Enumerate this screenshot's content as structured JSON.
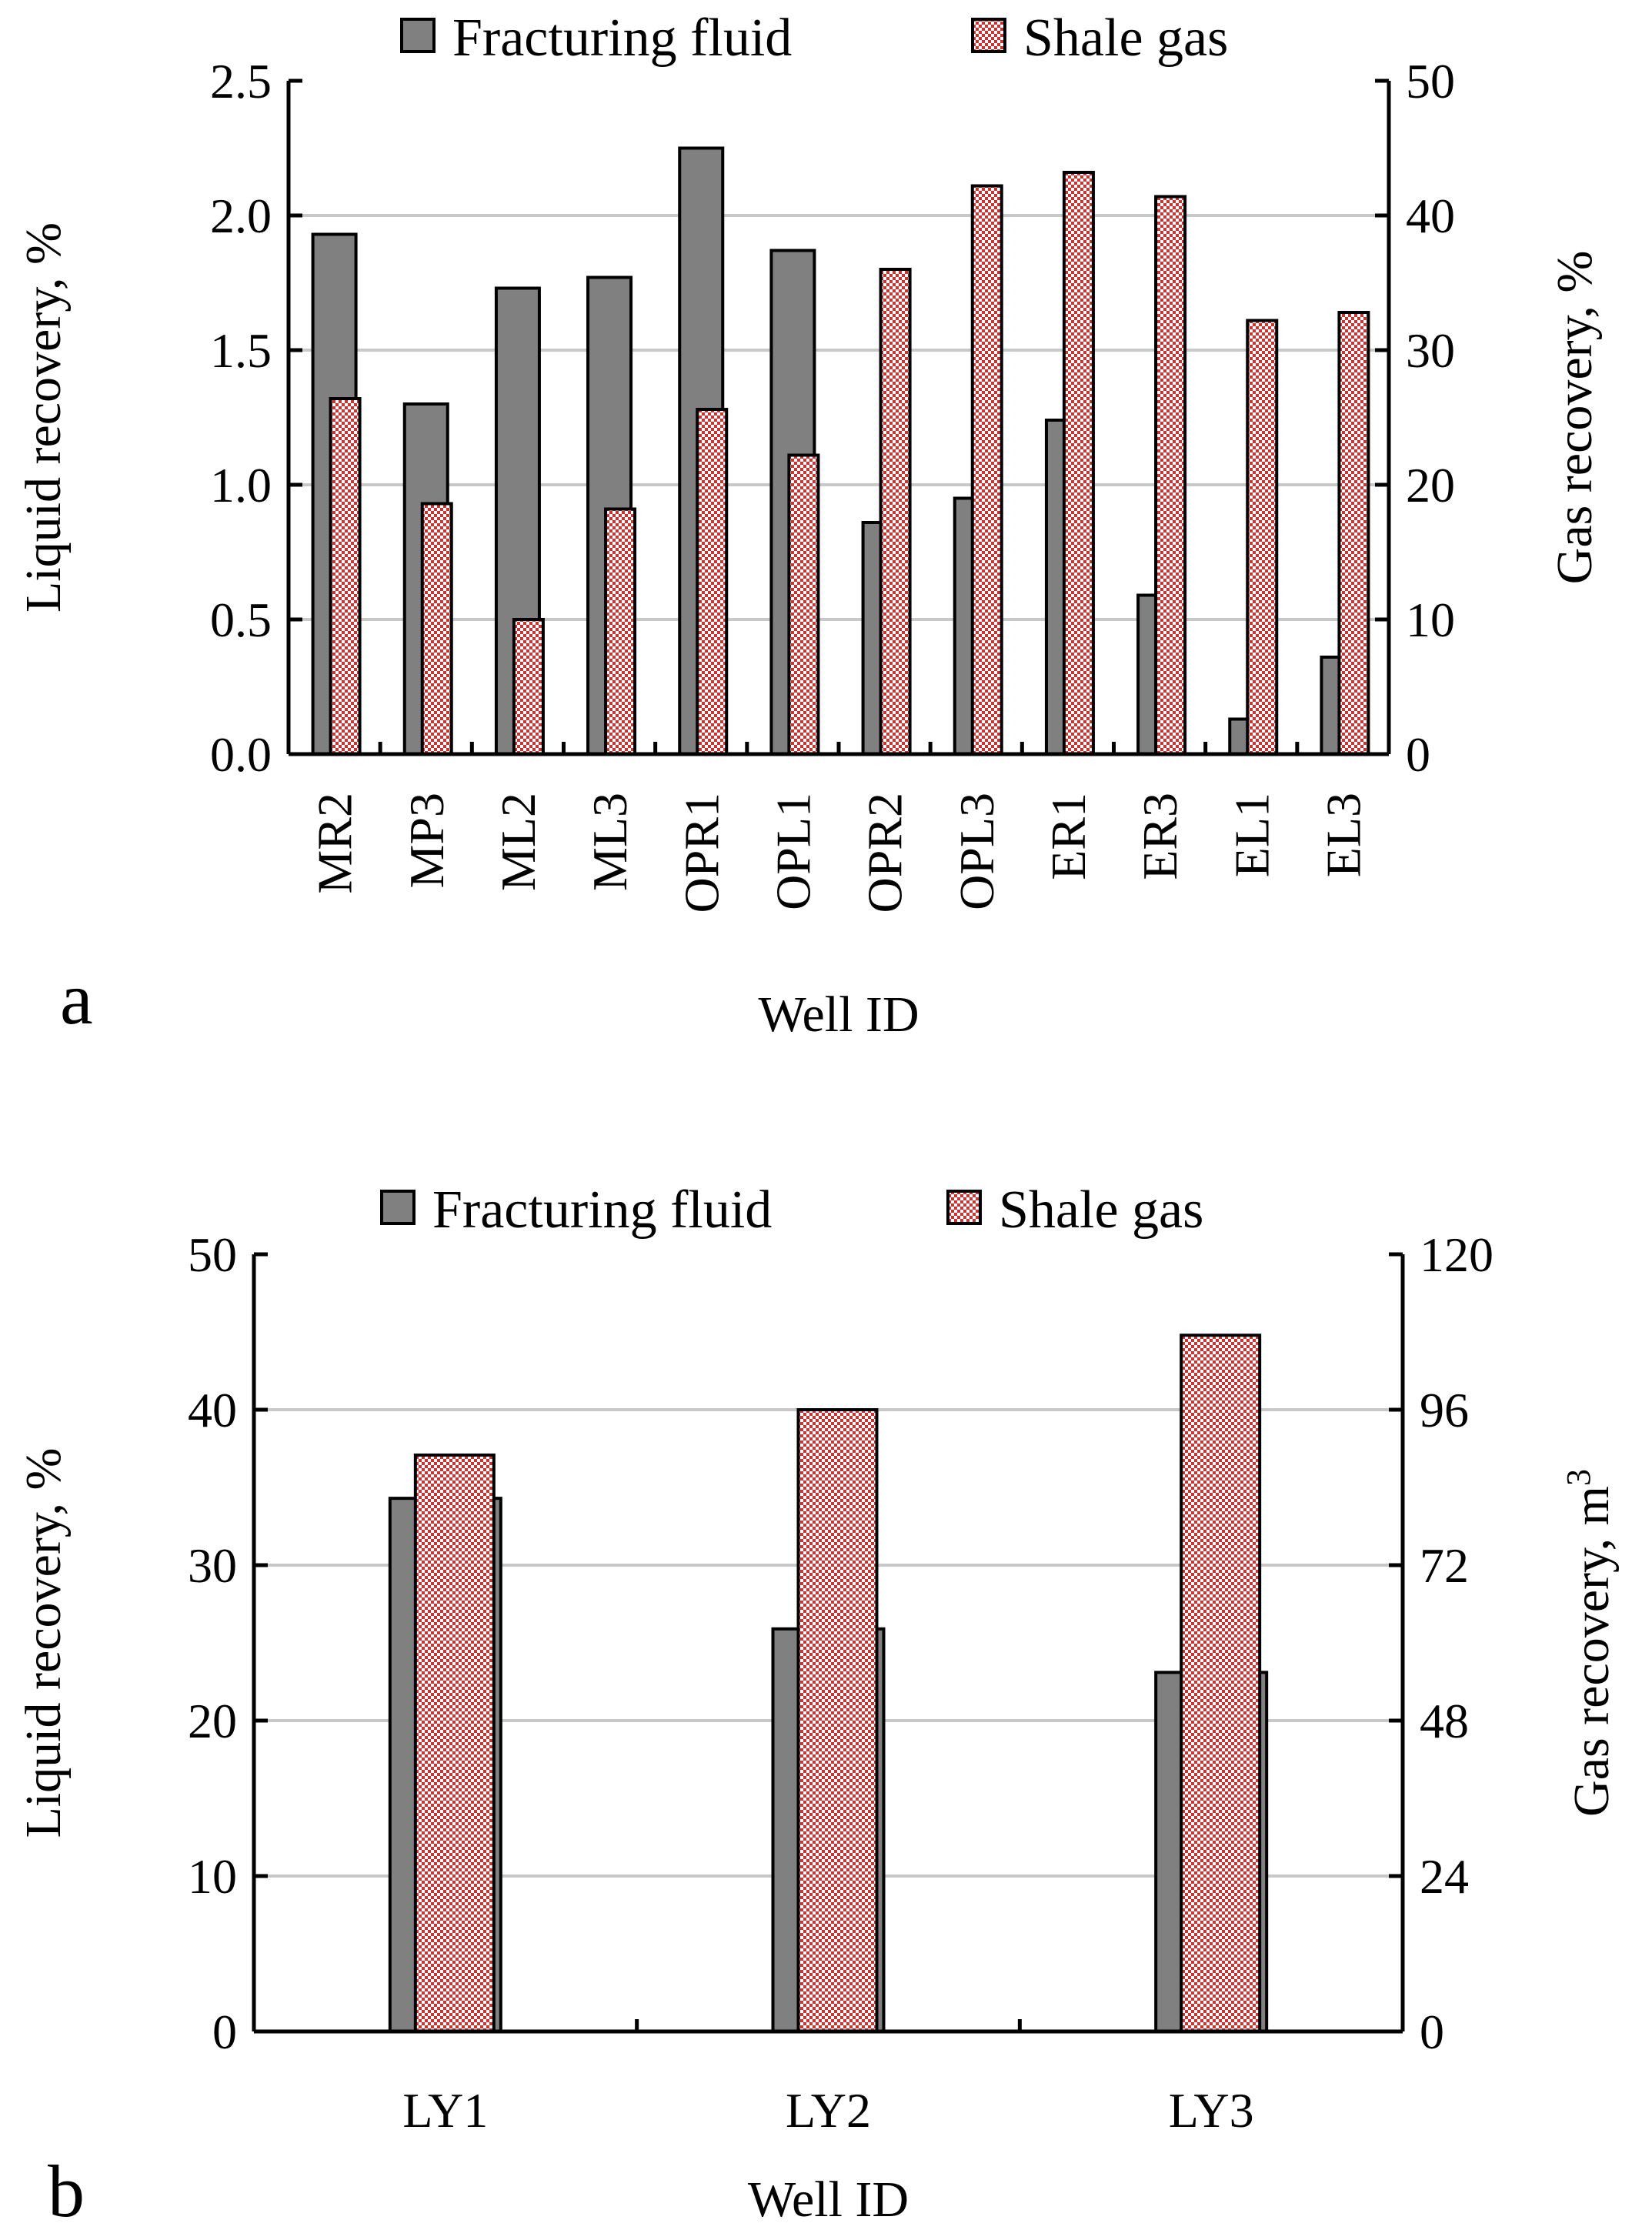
{
  "colors": {
    "fluid_bar": "#808080",
    "gas_bar": "#cc3333",
    "gas_bar_light": "#ffffff",
    "grid": "#c8c8c8",
    "axis": "#000000"
  },
  "chart_data": [
    {
      "type": "bar",
      "panel_label": "a",
      "title": "",
      "legend": [
        "Fracturing fluid",
        "Shale gas"
      ],
      "legend_position": "top",
      "xlabel": "Well ID",
      "ylabel": "Liquid recovery, %",
      "y2label": "Gas recovery, %",
      "ylim": [
        0,
        2.5
      ],
      "y2lim": [
        0,
        50
      ],
      "yticks": [
        "0.0",
        "0.5",
        "1.0",
        "1.5",
        "2.0",
        "2.5"
      ],
      "y2ticks": [
        "0",
        "10",
        "20",
        "30",
        "40",
        "50"
      ],
      "categories": [
        "MR2",
        "MP3",
        "ML2",
        "ML3",
        "OPR1",
        "OPL1",
        "OPR2",
        "OPL3",
        "ER1",
        "ER3",
        "EL1",
        "EL3"
      ],
      "category_orientation": "vertical",
      "series": [
        {
          "name": "Fracturing fluid",
          "axis": "left",
          "values": [
            1.93,
            1.3,
            1.73,
            1.77,
            2.25,
            1.87,
            0.86,
            0.95,
            1.24,
            0.59,
            0.13,
            0.36
          ]
        },
        {
          "name": "Shale gas",
          "axis": "right",
          "values": [
            26.4,
            18.6,
            10.0,
            18.2,
            25.6,
            22.2,
            36.0,
            42.2,
            43.2,
            41.4,
            32.2,
            32.8
          ]
        }
      ],
      "grid": true
    },
    {
      "type": "bar",
      "panel_label": "b",
      "title": "",
      "legend": [
        "Fracturing fluid",
        "Shale gas"
      ],
      "legend_position": "top",
      "xlabel": "Well ID",
      "ylabel": "Liquid recovery, %",
      "y2label": "Gas recovery, m3",
      "y2label_base": "Gas recovery, m",
      "y2label_sup": "3",
      "ylim": [
        0,
        50
      ],
      "y2lim": [
        0,
        120
      ],
      "yticks": [
        "0",
        "10",
        "20",
        "30",
        "40",
        "50"
      ],
      "y2ticks": [
        "0",
        "24",
        "48",
        "72",
        "96",
        "120"
      ],
      "categories": [
        "LY1",
        "LY2",
        "LY3"
      ],
      "category_orientation": "horizontal",
      "series": [
        {
          "name": "Fracturing fluid",
          "axis": "left",
          "values": [
            34.3,
            25.9,
            23.1
          ]
        },
        {
          "name": "Shale gas",
          "axis": "right",
          "values": [
            89,
            96,
            107.5
          ]
        }
      ],
      "grid": true
    }
  ]
}
